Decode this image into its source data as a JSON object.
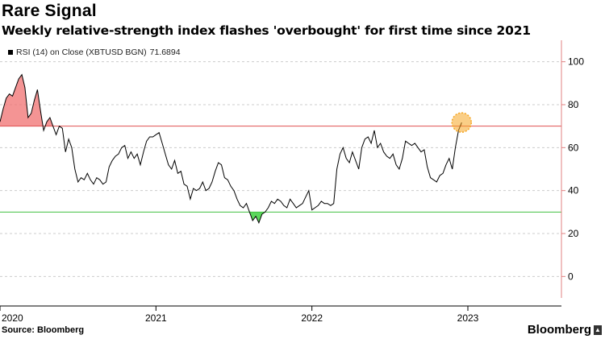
{
  "header": {
    "title": "Rare Signal",
    "subtitle": "Weekly relative-strength index flashes 'overbought' for first time since 2021"
  },
  "legend": {
    "label": "RSI (14)  on Close (XBTUSD BGN)",
    "value": "71.6894"
  },
  "footer": {
    "source": "Source: Bloomberg",
    "brand": "Bloomberg"
  },
  "colors": {
    "line": "#000000",
    "overbought_line": "#e05050",
    "oversold_line": "#40c040",
    "overbought_fill": "#f07070",
    "oversold_fill": "#40d040",
    "highlight": "#f5a623",
    "axis_line": "#e08080",
    "grid": "#cccccc"
  },
  "chart_data": {
    "type": "line",
    "title": "Rare Signal",
    "subtitle": "Weekly relative-strength index flashes 'overbought' for first time since 2021",
    "xlabel": "",
    "ylabel": "",
    "ylim": [
      -10,
      110
    ],
    "yticks": [
      0,
      20,
      40,
      60,
      80,
      100
    ],
    "xlim": [
      2020.0,
      2023.6
    ],
    "xticks": [
      {
        "x": 2020.0,
        "label": "2020"
      },
      {
        "x": 2021.0,
        "label": "2021"
      },
      {
        "x": 2022.0,
        "label": "2022"
      },
      {
        "x": 2023.0,
        "label": "2023"
      }
    ],
    "thresholds": {
      "overbought": 70,
      "oversold": 30
    },
    "grid": "horizontal dashed",
    "legend_position": "top-left",
    "series": [
      {
        "name": "RSI (14)  on Close (XBTUSD BGN)",
        "last_value": 71.6894,
        "points": [
          [
            2020.0,
            72
          ],
          [
            2020.02,
            78
          ],
          [
            2020.04,
            83
          ],
          [
            2020.06,
            85
          ],
          [
            2020.08,
            84
          ],
          [
            2020.1,
            88
          ],
          [
            2020.12,
            92
          ],
          [
            2020.14,
            94
          ],
          [
            2020.16,
            88
          ],
          [
            2020.18,
            74
          ],
          [
            2020.2,
            76
          ],
          [
            2020.22,
            82
          ],
          [
            2020.24,
            87
          ],
          [
            2020.26,
            77
          ],
          [
            2020.28,
            68
          ],
          [
            2020.3,
            72
          ],
          [
            2020.32,
            74
          ],
          [
            2020.34,
            70
          ],
          [
            2020.36,
            66
          ],
          [
            2020.38,
            70
          ],
          [
            2020.4,
            69
          ],
          [
            2020.42,
            58
          ],
          [
            2020.44,
            64
          ],
          [
            2020.46,
            60
          ],
          [
            2020.48,
            50
          ],
          [
            2020.5,
            44
          ],
          [
            2020.52,
            46
          ],
          [
            2020.54,
            45
          ],
          [
            2020.56,
            48
          ],
          [
            2020.58,
            45
          ],
          [
            2020.6,
            43
          ],
          [
            2020.62,
            46
          ],
          [
            2020.64,
            45
          ],
          [
            2020.66,
            43
          ],
          [
            2020.68,
            44
          ],
          [
            2020.7,
            51
          ],
          [
            2020.72,
            54
          ],
          [
            2020.74,
            56
          ],
          [
            2020.76,
            57
          ],
          [
            2020.78,
            60
          ],
          [
            2020.8,
            61
          ],
          [
            2020.82,
            55
          ],
          [
            2020.84,
            58
          ],
          [
            2020.86,
            55
          ],
          [
            2020.88,
            57
          ],
          [
            2020.9,
            52
          ],
          [
            2020.92,
            58
          ],
          [
            2020.94,
            63
          ],
          [
            2020.96,
            65
          ],
          [
            2020.98,
            65
          ],
          [
            2021.0,
            66
          ],
          [
            2021.02,
            67
          ],
          [
            2021.04,
            62
          ],
          [
            2021.06,
            57
          ],
          [
            2021.08,
            52
          ],
          [
            2021.1,
            50
          ],
          [
            2021.12,
            54
          ],
          [
            2021.14,
            48
          ],
          [
            2021.16,
            49
          ],
          [
            2021.18,
            43
          ],
          [
            2021.2,
            42
          ],
          [
            2021.22,
            36
          ],
          [
            2021.24,
            41
          ],
          [
            2021.26,
            40
          ],
          [
            2021.28,
            41
          ],
          [
            2021.3,
            44
          ],
          [
            2021.32,
            40
          ],
          [
            2021.34,
            41
          ],
          [
            2021.36,
            44
          ],
          [
            2021.38,
            49
          ],
          [
            2021.4,
            53
          ],
          [
            2021.42,
            52
          ],
          [
            2021.44,
            46
          ],
          [
            2021.46,
            45
          ],
          [
            2021.48,
            42
          ],
          [
            2021.5,
            40
          ],
          [
            2021.52,
            36
          ],
          [
            2021.54,
            33
          ],
          [
            2021.56,
            32
          ],
          [
            2021.58,
            34
          ],
          [
            2021.6,
            30
          ],
          [
            2021.62,
            26
          ],
          [
            2021.64,
            28
          ],
          [
            2021.66,
            25
          ],
          [
            2021.68,
            29
          ],
          [
            2021.7,
            30
          ],
          [
            2021.72,
            32
          ],
          [
            2021.74,
            35
          ],
          [
            2021.76,
            34
          ],
          [
            2021.78,
            36
          ],
          [
            2021.8,
            35
          ],
          [
            2021.82,
            33
          ],
          [
            2021.84,
            32
          ],
          [
            2021.86,
            36
          ],
          [
            2021.88,
            34
          ],
          [
            2021.9,
            32
          ],
          [
            2021.92,
            33
          ],
          [
            2021.94,
            34
          ],
          [
            2021.96,
            37
          ],
          [
            2021.98,
            40
          ],
          [
            2022.0,
            31
          ],
          [
            2022.02,
            32
          ],
          [
            2022.04,
            33
          ],
          [
            2022.06,
            35
          ],
          [
            2022.08,
            34
          ],
          [
            2022.1,
            34
          ],
          [
            2022.12,
            33
          ],
          [
            2022.14,
            34
          ],
          [
            2022.16,
            50
          ],
          [
            2022.18,
            57
          ],
          [
            2022.2,
            60
          ],
          [
            2022.22,
            55
          ],
          [
            2022.24,
            53
          ],
          [
            2022.26,
            58
          ],
          [
            2022.28,
            54
          ],
          [
            2022.3,
            50
          ],
          [
            2022.32,
            60
          ],
          [
            2022.34,
            64
          ],
          [
            2022.36,
            65
          ],
          [
            2022.38,
            62
          ],
          [
            2022.4,
            68
          ],
          [
            2022.42,
            60
          ],
          [
            2022.44,
            62
          ],
          [
            2022.46,
            58
          ],
          [
            2022.48,
            56
          ],
          [
            2022.5,
            55
          ],
          [
            2022.52,
            57
          ],
          [
            2022.54,
            52
          ],
          [
            2022.56,
            50
          ],
          [
            2022.58,
            55
          ],
          [
            2022.6,
            63
          ],
          [
            2022.62,
            62
          ],
          [
            2022.64,
            61
          ],
          [
            2022.66,
            62
          ],
          [
            2022.68,
            60
          ],
          [
            2022.7,
            58
          ],
          [
            2022.72,
            59
          ],
          [
            2022.74,
            51
          ],
          [
            2022.76,
            46
          ],
          [
            2022.78,
            45
          ],
          [
            2022.8,
            44
          ],
          [
            2022.82,
            47
          ],
          [
            2022.84,
            48
          ],
          [
            2022.86,
            52
          ],
          [
            2022.88,
            55
          ],
          [
            2022.9,
            50
          ],
          [
            2022.92,
            60
          ],
          [
            2022.94,
            68
          ],
          [
            2022.96,
            71.7
          ]
        ]
      }
    ],
    "highlight_point": {
      "x": 2022.96,
      "y": 71.7
    }
  }
}
